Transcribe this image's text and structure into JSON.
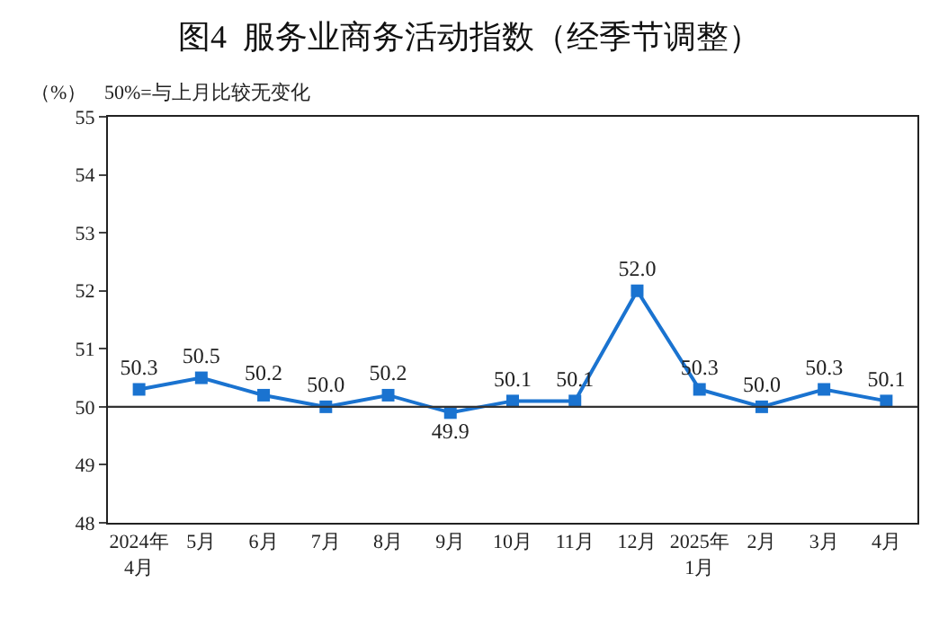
{
  "chart_data": {
    "type": "line",
    "title": "图4  服务业商务活动指数（经季节调整）",
    "ylabel": "（%）",
    "annotations": [
      "50%=与上月比较无变化"
    ],
    "categories": [
      "2024年\n4月",
      "5月",
      "6月",
      "7月",
      "8月",
      "9月",
      "10月",
      "11月",
      "12月",
      "2025年\n1月",
      "2月",
      "3月",
      "4月"
    ],
    "series": [
      {
        "color": "#1a73d0",
        "values": [
          50.3,
          50.5,
          50.2,
          50.0,
          50.2,
          49.9,
          50.1,
          50.1,
          52.0,
          50.3,
          50.0,
          50.3,
          50.1
        ],
        "value_labels": [
          "50.3",
          "50.5",
          "50.2",
          "50.0",
          "50.2",
          "49.9",
          "50.1",
          "50.1",
          "52.0",
          "50.3",
          "50.0",
          "50.3",
          "50.1"
        ]
      }
    ],
    "ylim": [
      48,
      55
    ],
    "yticks": [
      48,
      49,
      50,
      51,
      52,
      53,
      54,
      55
    ],
    "ref_lines": [
      {
        "axis": "y",
        "value": 50,
        "color": "#333333"
      }
    ],
    "marker": "square",
    "line_style": "solid"
  }
}
